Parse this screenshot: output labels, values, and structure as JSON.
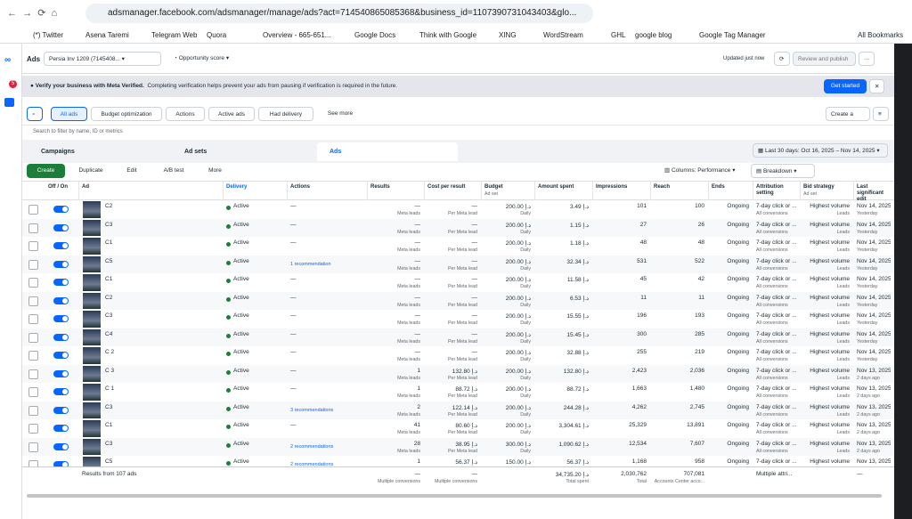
{
  "browser": {
    "url": "adsmanager.facebook.com/adsmanager/manage/ads?act=714540865085368&business_id=1107390731043403&glo...",
    "bookmarks": [
      "(*) Twitter",
      "Asena Taremi",
      "Telegram Web",
      "Quora",
      "Overview - 665-651...",
      "Google Docs",
      "Think with Google",
      "XING",
      "WordStream",
      "GHL",
      "google blog",
      "Google Tag Manager"
    ],
    "all_bookmarks": "All Bookmarks",
    "badge": "5"
  },
  "header": {
    "title": "Ads",
    "account": "Persia Inv 1209 (7145408...",
    "score": "Opportunity score",
    "updated": "Updated just now",
    "review": "Review and publish"
  },
  "banner": {
    "title": "Verify your business with Meta Verified.",
    "text": "Completing verification helps prevent your ads from pausing if verification is required in the future.",
    "button": "Get started"
  },
  "toolbar": {
    "filters": [
      "All ads",
      "Budget optimization",
      "Actions",
      "Active ads",
      "Had delivery",
      "See more"
    ],
    "create_view": "Create a view",
    "search": "Search to filter by name, ID or metrics"
  },
  "tabs": [
    "Campaigns",
    "Ad sets",
    "Ads"
  ],
  "date_range": "Last 30 days: Oct 16, 2025 – Nov 14, 2025",
  "actions": [
    "Create",
    "Duplicate",
    "Edit",
    "A/B test",
    "More"
  ],
  "columns_button": "Columns: Performance",
  "breakdown": "Breakdown",
  "table": {
    "columns": {
      "toggle": "Off / On",
      "ad": "Ad",
      "delivery": "Delivery",
      "actions": "Actions",
      "results": "Results",
      "cost": "Cost per result",
      "budget": "Budget",
      "budget_sub": "Ad set",
      "spent": "Amount spent",
      "impressions": "Impressions",
      "reach": "Reach",
      "ends": "Ends",
      "attribution": "Attribution setting",
      "bid": "Bid strategy",
      "bid_sub": "Ad set",
      "edit": "Last significant edit"
    },
    "rows": [
      {
        "ad": "C2",
        "delivery": "Active",
        "actions": "—",
        "results": "—",
        "results_sub": "Meta leads",
        "cost": "—",
        "cost_sub": "Per Meta lead",
        "budget": "200.00 د.إ",
        "budget_sub": "Daily",
        "spent": "3.49 د.إ",
        "impressions": "101",
        "reach": "100",
        "ends": "Ongoing",
        "attribution": "7-day click or ...",
        "attribution_sub": "All conversions",
        "bid": "Highest volume",
        "bid_sub": "Leads",
        "edit": "Nov 14, 2025",
        "edit_sub": "Yesterday"
      },
      {
        "ad": "C3",
        "delivery": "Active",
        "actions": "—",
        "results": "—",
        "results_sub": "Meta leads",
        "cost": "—",
        "cost_sub": "Per Meta lead",
        "budget": "200.00 د.إ",
        "budget_sub": "Daily",
        "spent": "1.15 د.إ",
        "impressions": "27",
        "reach": "26",
        "ends": "Ongoing",
        "attribution": "7-day click or ...",
        "attribution_sub": "All conversions",
        "bid": "Highest volume",
        "bid_sub": "Leads",
        "edit": "Nov 14, 2025",
        "edit_sub": "Yesterday"
      },
      {
        "ad": "C1",
        "delivery": "Active",
        "actions": "—",
        "results": "—",
        "results_sub": "Meta leads",
        "cost": "—",
        "cost_sub": "Per Meta lead",
        "budget": "200.00 د.إ",
        "budget_sub": "Daily",
        "spent": "1.18 د.إ",
        "impressions": "48",
        "reach": "48",
        "ends": "Ongoing",
        "attribution": "7-day click or ...",
        "attribution_sub": "All conversions",
        "bid": "Highest volume",
        "bid_sub": "Leads",
        "edit": "Nov 14, 2025",
        "edit_sub": "Yesterday"
      },
      {
        "ad": "C5",
        "delivery": "Active",
        "actions": "1 recommendation",
        "results": "—",
        "results_sub": "Meta leads",
        "cost": "—",
        "cost_sub": "Per Meta lead",
        "budget": "200.00 د.إ",
        "budget_sub": "Daily",
        "spent": "32.34 د.إ",
        "impressions": "531",
        "reach": "522",
        "ends": "Ongoing",
        "attribution": "7-day click or ...",
        "attribution_sub": "All conversions",
        "bid": "Highest volume",
        "bid_sub": "Leads",
        "edit": "Nov 14, 2025",
        "edit_sub": "Yesterday"
      },
      {
        "ad": "C1",
        "delivery": "Active",
        "actions": "—",
        "results": "—",
        "results_sub": "Meta leads",
        "cost": "—",
        "cost_sub": "Per Meta lead",
        "budget": "200.00 د.إ",
        "budget_sub": "Daily",
        "spent": "11.58 د.إ",
        "impressions": "45",
        "reach": "42",
        "ends": "Ongoing",
        "attribution": "7-day click or ...",
        "attribution_sub": "All conversions",
        "bid": "Highest volume",
        "bid_sub": "Leads",
        "edit": "Nov 14, 2025",
        "edit_sub": "Yesterday"
      },
      {
        "ad": "C2",
        "delivery": "Active",
        "actions": "—",
        "results": "—",
        "results_sub": "Meta leads",
        "cost": "—",
        "cost_sub": "Per Meta lead",
        "budget": "200.00 د.إ",
        "budget_sub": "Daily",
        "spent": "6.53 د.إ",
        "impressions": "11",
        "reach": "11",
        "ends": "Ongoing",
        "attribution": "7-day click or ...",
        "attribution_sub": "All conversions",
        "bid": "Highest volume",
        "bid_sub": "Leads",
        "edit": "Nov 14, 2025",
        "edit_sub": "Yesterday"
      },
      {
        "ad": "C3",
        "delivery": "Active",
        "actions": "—",
        "results": "—",
        "results_sub": "Meta leads",
        "cost": "—",
        "cost_sub": "Per Meta lead",
        "budget": "200.00 د.إ",
        "budget_sub": "Daily",
        "spent": "15.55 د.إ",
        "impressions": "196",
        "reach": "193",
        "ends": "Ongoing",
        "attribution": "7-day click or ...",
        "attribution_sub": "All conversions",
        "bid": "Highest volume",
        "bid_sub": "Leads",
        "edit": "Nov 14, 2025",
        "edit_sub": "Yesterday"
      },
      {
        "ad": "C4",
        "delivery": "Active",
        "actions": "—",
        "results": "—",
        "results_sub": "Meta leads",
        "cost": "—",
        "cost_sub": "Per Meta lead",
        "budget": "200.00 د.إ",
        "budget_sub": "Daily",
        "spent": "15.45 د.إ",
        "impressions": "300",
        "reach": "285",
        "ends": "Ongoing",
        "attribution": "7-day click or ...",
        "attribution_sub": "All conversions",
        "bid": "Highest volume",
        "bid_sub": "Leads",
        "edit": "Nov 14, 2025",
        "edit_sub": "Yesterday"
      },
      {
        "ad": "C 2",
        "delivery": "Active",
        "actions": "—",
        "results": "—",
        "results_sub": "Meta leads",
        "cost": "—",
        "cost_sub": "Per Meta lead",
        "budget": "200.00 د.إ",
        "budget_sub": "Daily",
        "spent": "32.88 د.إ",
        "impressions": "255",
        "reach": "219",
        "ends": "Ongoing",
        "attribution": "7-day click or ...",
        "attribution_sub": "All conversions",
        "bid": "Highest volume",
        "bid_sub": "Leads",
        "edit": "Nov 14, 2025",
        "edit_sub": "Yesterday"
      },
      {
        "ad": "C 3",
        "delivery": "Active",
        "actions": "—",
        "results": "1",
        "results_sub": "Meta leads",
        "cost": "132.80 د.إ",
        "cost_sub": "Per Meta lead",
        "budget": "200.00 د.إ",
        "budget_sub": "Daily",
        "spent": "132.80 د.إ",
        "impressions": "2,423",
        "reach": "2,036",
        "ends": "Ongoing",
        "attribution": "7-day click or ...",
        "attribution_sub": "All conversions",
        "bid": "Highest volume",
        "bid_sub": "Leads",
        "edit": "Nov 13, 2025",
        "edit_sub": "2 days ago"
      },
      {
        "ad": "C 1",
        "delivery": "Active",
        "actions": "—",
        "results": "1",
        "results_sub": "Meta leads",
        "cost": "88.72 د.إ",
        "cost_sub": "Per Meta lead",
        "budget": "200.00 د.إ",
        "budget_sub": "Daily",
        "spent": "88.72 د.إ",
        "impressions": "1,663",
        "reach": "1,480",
        "ends": "Ongoing",
        "attribution": "7-day click or ...",
        "attribution_sub": "All conversions",
        "bid": "Highest volume",
        "bid_sub": "Leads",
        "edit": "Nov 13, 2025",
        "edit_sub": "2 days ago"
      },
      {
        "ad": "C3",
        "delivery": "Active",
        "actions": "3 recommendations",
        "results": "2",
        "results_sub": "Meta leads",
        "cost": "122.14 د.إ",
        "cost_sub": "Per Meta lead",
        "budget": "200.00 د.إ",
        "budget_sub": "Daily",
        "spent": "244.28 د.إ",
        "impressions": "4,262",
        "reach": "2,745",
        "ends": "Ongoing",
        "attribution": "7-day click or ...",
        "attribution_sub": "All conversions",
        "bid": "Highest volume",
        "bid_sub": "Leads",
        "edit": "Nov 13, 2025",
        "edit_sub": "2 days ago"
      },
      {
        "ad": "C1",
        "delivery": "Active",
        "actions": "—",
        "results": "41",
        "results_sub": "Meta leads",
        "cost": "80.60 د.إ",
        "cost_sub": "Per Meta lead",
        "budget": "200.00 د.إ",
        "budget_sub": "Daily",
        "spent": "3,304.61 د.إ",
        "impressions": "25,329",
        "reach": "13,891",
        "ends": "Ongoing",
        "attribution": "7-day click or ...",
        "attribution_sub": "All conversions",
        "bid": "Highest volume",
        "bid_sub": "Leads",
        "edit": "Nov 13, 2025",
        "edit_sub": "2 days ago"
      },
      {
        "ad": "C3",
        "delivery": "Active",
        "actions": "2 recommendations",
        "results": "28",
        "results_sub": "Meta leads",
        "cost": "38.95 د.إ",
        "cost_sub": "Per Meta lead",
        "budget": "300.00 د.إ",
        "budget_sub": "Daily",
        "spent": "1,090.62 د.إ",
        "impressions": "12,534",
        "reach": "7,607",
        "ends": "Ongoing",
        "attribution": "7-day click or ...",
        "attribution_sub": "All conversions",
        "bid": "Highest volume",
        "bid_sub": "Leads",
        "edit": "Nov 13, 2025",
        "edit_sub": "2 days ago"
      },
      {
        "ad": "C5",
        "delivery": "Active",
        "actions": "2 recommendations",
        "results": "1",
        "results_sub": "Meta leads",
        "cost": "56.37 د.إ",
        "cost_sub": "Per Meta lead",
        "budget": "150.00 د.إ",
        "budget_sub": "Daily",
        "spent": "56.37 د.إ",
        "impressions": "1,168",
        "reach": "958",
        "ends": "Ongoing",
        "attribution": "7-day click or ...",
        "attribution_sub": "All conversions",
        "bid": "Highest volume",
        "bid_sub": "Leads",
        "edit": "Nov 13, 2025",
        "edit_sub": "2 days ago"
      }
    ],
    "footer": {
      "ad": "Results from 107 ads",
      "results": "—",
      "results_sub": "Multiple conversions",
      "cost": "—",
      "cost_sub": "Multiple conversions",
      "spent": "34,735.20 د.إ",
      "spent_sub": "Total spent",
      "impressions": "2,030,762",
      "impressions_sub": "Total",
      "reach": "707,081",
      "reach_sub": "Accounts Center acco...",
      "attribution": "Multiple attri...",
      "edit": "—"
    }
  }
}
